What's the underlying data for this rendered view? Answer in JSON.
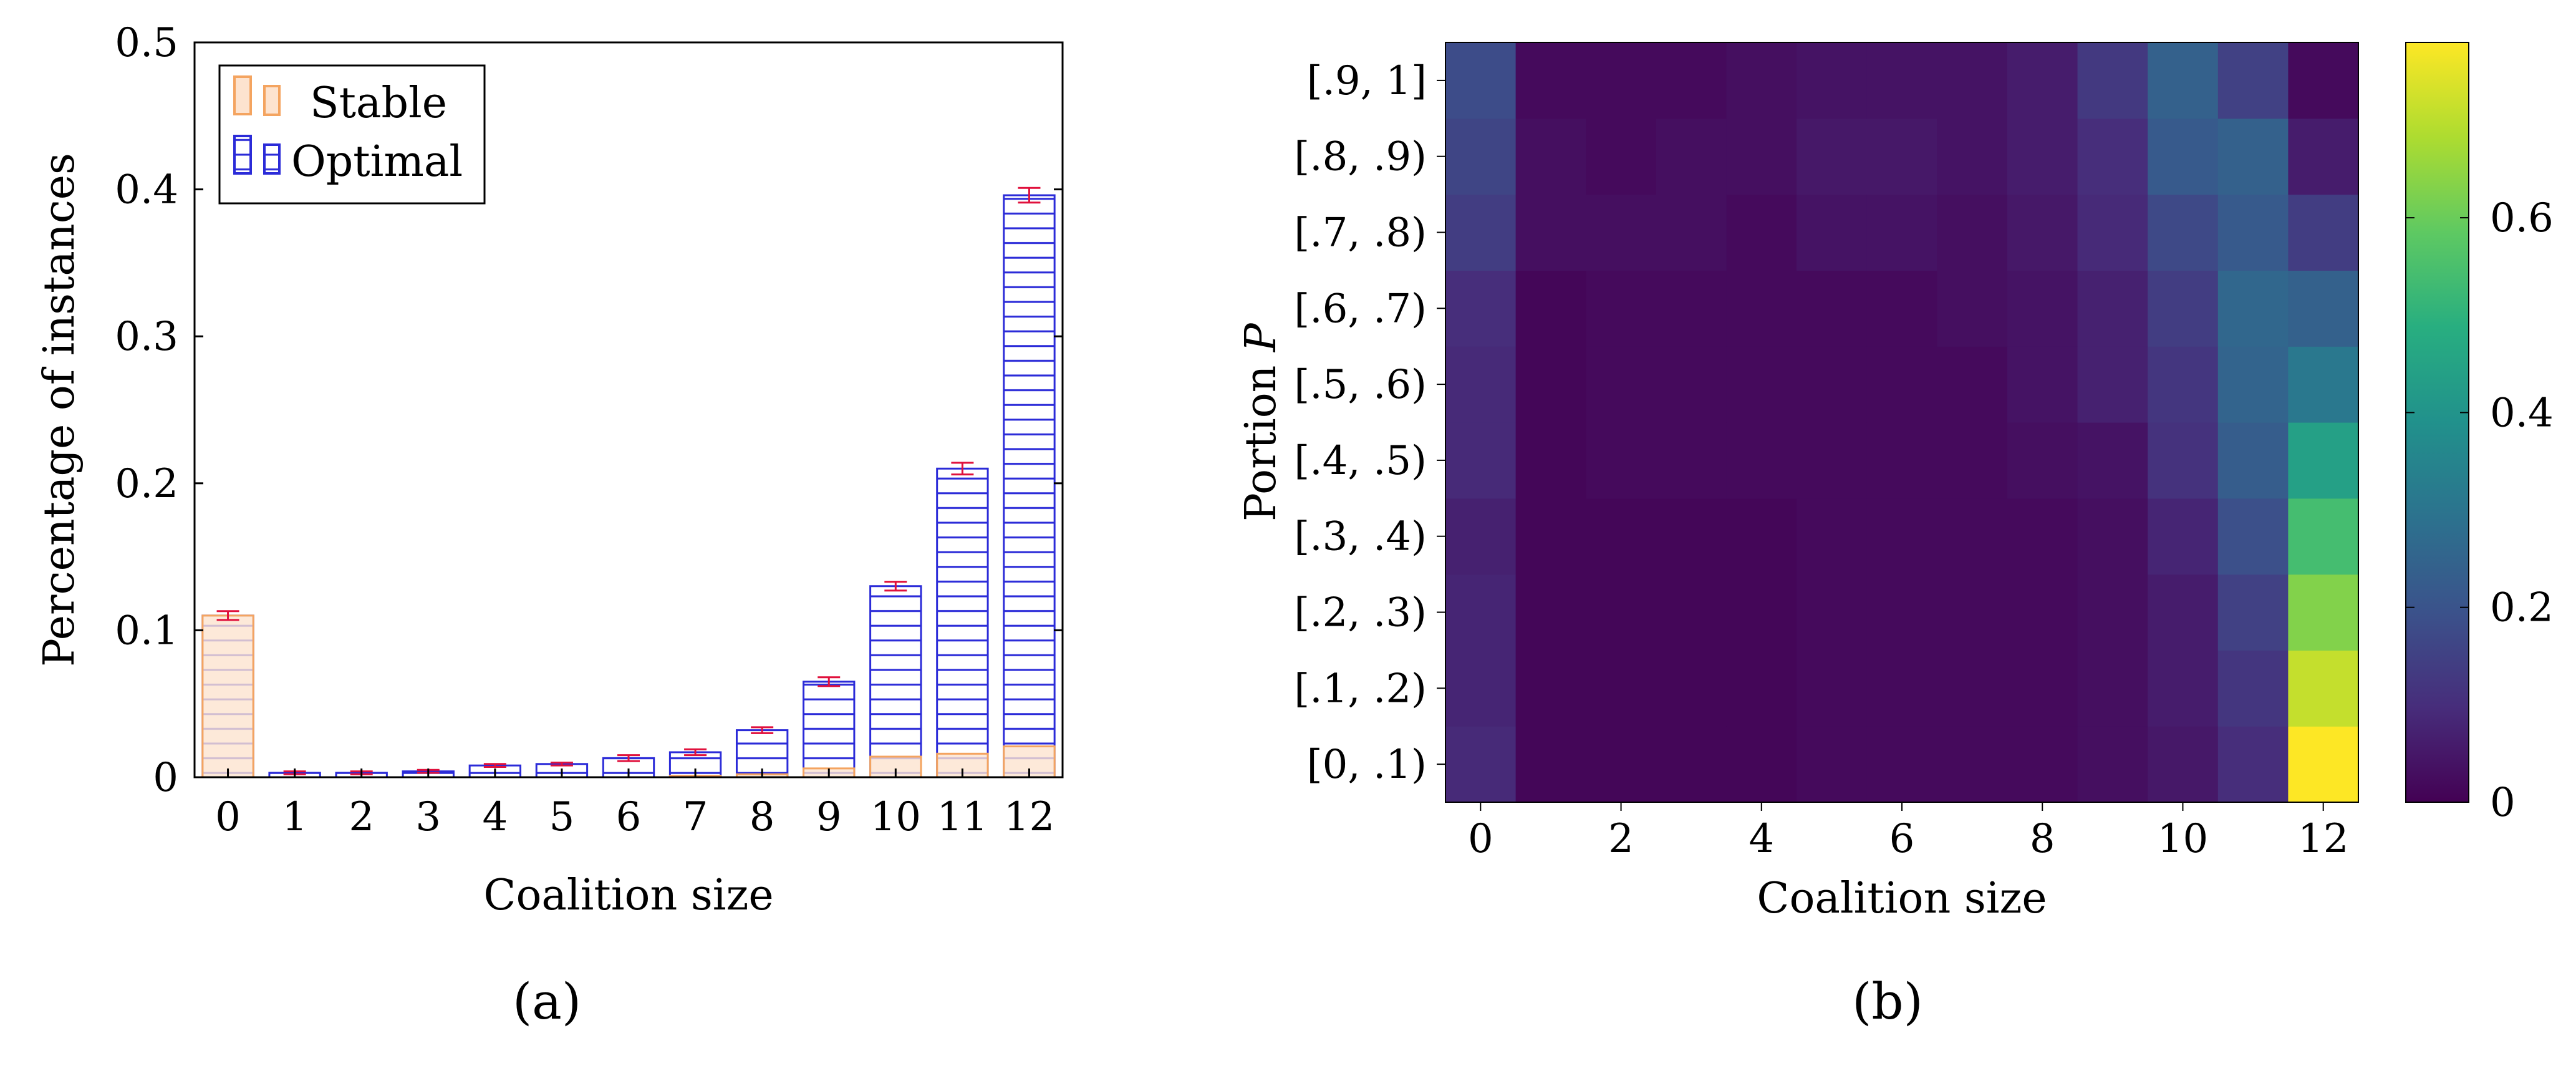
{
  "panels": {
    "a": {
      "caption": "(a)"
    },
    "b": {
      "caption": "(b)"
    }
  },
  "chart_data": [
    {
      "id": "a",
      "type": "bar",
      "xlabel": "Coalition size",
      "ylabel": "Percentage of instances",
      "ylim": [
        0,
        0.5
      ],
      "yticks": [
        0,
        0.1,
        0.2,
        0.3,
        0.4,
        0.5
      ],
      "ytick_labels": [
        "0",
        "0.1",
        "0.2",
        "0.3",
        "0.4",
        "0.5"
      ],
      "categories": [
        "0",
        "1",
        "2",
        "3",
        "4",
        "5",
        "6",
        "7",
        "8",
        "9",
        "10",
        "11",
        "12"
      ],
      "grid": false,
      "legend_position": "top-left",
      "series": [
        {
          "name": "Stable",
          "color": "#f4a460",
          "fill": "#fde3cf",
          "values": [
            0.11,
            0,
            0,
            0,
            0,
            0,
            0,
            0.001,
            0.002,
            0.006,
            0.014,
            0.016,
            0.021
          ]
        },
        {
          "name": "Optimal",
          "color": "#2b2bd8",
          "fill": "none",
          "pattern": "horizontal-lines",
          "values": [
            0.11,
            0.003,
            0.003,
            0.004,
            0.008,
            0.009,
            0.013,
            0.017,
            0.032,
            0.065,
            0.13,
            0.21,
            0.396
          ],
          "error": [
            0.003,
            0.001,
            0.001,
            0.001,
            0.001,
            0.001,
            0.002,
            0.002,
            0.002,
            0.003,
            0.003,
            0.004,
            0.005
          ]
        }
      ]
    },
    {
      "id": "b",
      "type": "heatmap",
      "xlabel": "Coalition size",
      "ylabel": "Portion P",
      "ylabel_var": "P",
      "x": [
        0,
        1,
        2,
        3,
        4,
        5,
        6,
        7,
        8,
        9,
        10,
        11,
        12
      ],
      "xticks": [
        "0",
        "2",
        "4",
        "6",
        "8",
        "10",
        "12"
      ],
      "y": [
        "[0, .1)",
        "[.1, .2)",
        "[.2, .3)",
        "[.3, .4)",
        "[.4, .5)",
        "[.5, .6)",
        "[.6, .7)",
        "[.7, .8)",
        "[.8, .9)",
        "[.9, 1]"
      ],
      "values": [
        [
          0.09,
          0.01,
          0.01,
          0.01,
          0.01,
          0.02,
          0.02,
          0.02,
          0.02,
          0.03,
          0.05,
          0.1,
          0.78
        ],
        [
          0.08,
          0.01,
          0.01,
          0.01,
          0.01,
          0.02,
          0.02,
          0.02,
          0.02,
          0.03,
          0.06,
          0.12,
          0.71
        ],
        [
          0.08,
          0.01,
          0.01,
          0.01,
          0.01,
          0.02,
          0.02,
          0.02,
          0.02,
          0.03,
          0.06,
          0.15,
          0.63
        ],
        [
          0.07,
          0.01,
          0.01,
          0.01,
          0.01,
          0.02,
          0.02,
          0.02,
          0.02,
          0.03,
          0.08,
          0.19,
          0.54
        ],
        [
          0.09,
          0.01,
          0.02,
          0.02,
          0.02,
          0.02,
          0.02,
          0.02,
          0.03,
          0.04,
          0.11,
          0.23,
          0.44
        ],
        [
          0.09,
          0.01,
          0.02,
          0.02,
          0.02,
          0.02,
          0.02,
          0.02,
          0.04,
          0.07,
          0.12,
          0.25,
          0.31
        ],
        [
          0.1,
          0.01,
          0.02,
          0.02,
          0.02,
          0.02,
          0.02,
          0.03,
          0.04,
          0.07,
          0.14,
          0.26,
          0.24
        ],
        [
          0.14,
          0.03,
          0.03,
          0.03,
          0.02,
          0.04,
          0.04,
          0.03,
          0.05,
          0.09,
          0.17,
          0.22,
          0.14
        ],
        [
          0.16,
          0.03,
          0.02,
          0.03,
          0.03,
          0.05,
          0.05,
          0.04,
          0.06,
          0.1,
          0.22,
          0.24,
          0.06
        ],
        [
          0.18,
          0.02,
          0.02,
          0.02,
          0.03,
          0.04,
          0.04,
          0.04,
          0.06,
          0.13,
          0.24,
          0.15,
          0.02
        ]
      ],
      "colorbar": {
        "range": [
          0,
          0.78
        ],
        "ticks": [
          0,
          0.2,
          0.4,
          0.6
        ],
        "tick_labels": [
          "0",
          "0.2",
          "0.4",
          "0.6"
        ],
        "colormap": "viridis"
      }
    }
  ]
}
